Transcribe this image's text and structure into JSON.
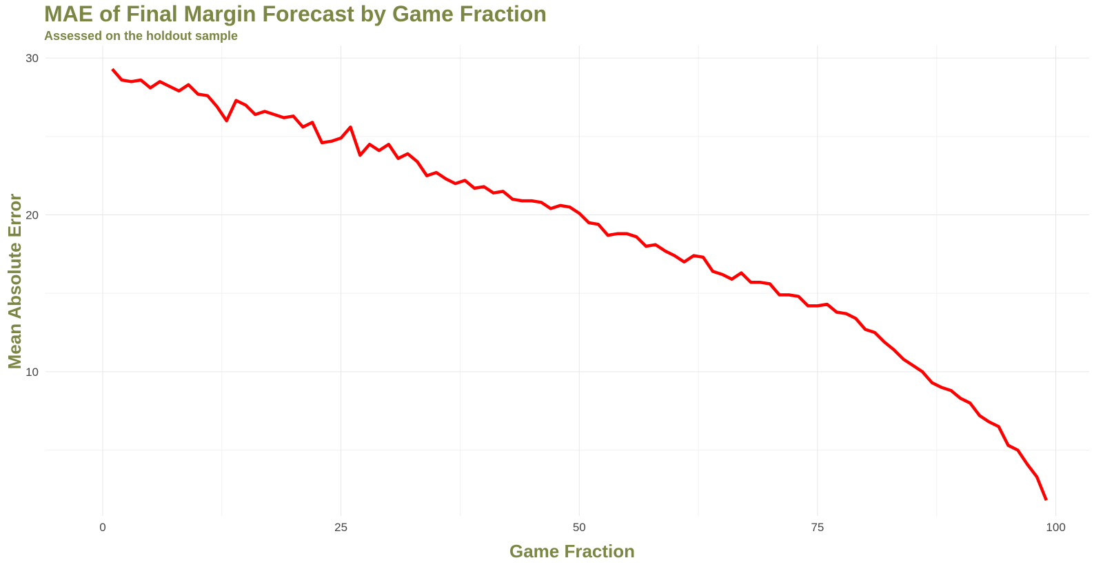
{
  "chart_data": {
    "type": "line",
    "title": "MAE of Final Margin Forecast by Game Fraction",
    "subtitle": "Assessed on the holdout sample",
    "xlabel": "Game Fraction",
    "ylabel": "Mean Absolute Error",
    "xlim": [
      -6,
      103.5
    ],
    "ylim": [
      0.8,
      30.8
    ],
    "xticks": [
      0,
      25,
      50,
      75,
      100
    ],
    "yticks": [
      10,
      20,
      30
    ],
    "grid": true,
    "legend": "none",
    "series": [
      {
        "color": "#ff0000",
        "x": [
          1,
          2,
          3,
          4,
          5,
          6,
          7,
          8,
          9,
          10,
          11,
          12,
          13,
          14,
          15,
          16,
          17,
          18,
          19,
          20,
          21,
          22,
          23,
          24,
          25,
          26,
          27,
          28,
          29,
          30,
          31,
          32,
          33,
          34,
          35,
          36,
          37,
          38,
          39,
          40,
          41,
          42,
          43,
          44,
          45,
          46,
          47,
          48,
          49,
          50,
          51,
          52,
          53,
          54,
          55,
          56,
          57,
          58,
          59,
          60,
          61,
          62,
          63,
          64,
          65,
          66,
          67,
          68,
          69,
          70,
          71,
          72,
          73,
          74,
          75,
          76,
          77,
          78,
          79,
          80,
          81,
          82,
          83,
          84,
          85,
          86,
          87,
          88,
          89,
          90,
          91,
          92,
          93,
          94,
          95,
          96,
          97,
          98,
          99
        ],
        "y": [
          29.3,
          28.6,
          28.5,
          28.6,
          28.1,
          28.5,
          28.2,
          27.9,
          28.3,
          27.7,
          27.6,
          26.9,
          26.0,
          27.3,
          27.0,
          26.4,
          26.6,
          26.4,
          26.2,
          26.3,
          25.6,
          25.9,
          24.6,
          24.7,
          24.9,
          25.6,
          23.8,
          24.5,
          24.1,
          24.5,
          23.6,
          23.9,
          23.4,
          22.5,
          22.7,
          22.3,
          22.0,
          22.2,
          21.7,
          21.8,
          21.4,
          21.5,
          21.0,
          20.9,
          20.9,
          20.8,
          20.4,
          20.6,
          20.5,
          20.1,
          19.5,
          19.4,
          18.7,
          18.8,
          18.8,
          18.6,
          18.0,
          18.1,
          17.7,
          17.4,
          17.0,
          17.4,
          17.3,
          16.4,
          16.2,
          15.9,
          16.3,
          15.7,
          15.7,
          15.6,
          14.9,
          14.9,
          14.8,
          14.2,
          14.2,
          14.3,
          13.8,
          13.7,
          13.4,
          12.7,
          12.5,
          11.9,
          11.4,
          10.8,
          10.4,
          10.0,
          9.3,
          9.0,
          8.8,
          8.3,
          8.0,
          7.2,
          6.8,
          6.5,
          5.3,
          5.0,
          4.1,
          3.3,
          1.8
        ]
      }
    ]
  }
}
